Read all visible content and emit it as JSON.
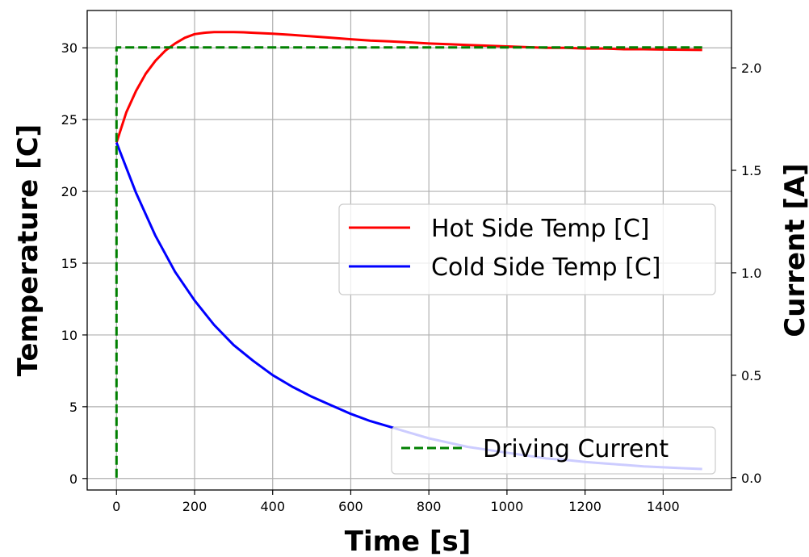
{
  "chart_data": {
    "type": "line",
    "xlabel": "Time [s]",
    "ylabel_left": "Temperature [C]",
    "ylabel_right": "Current [A]",
    "xlim": [
      -75,
      1575
    ],
    "ylim_left": [
      -0.8,
      32.6
    ],
    "ylim_right": [
      -0.06,
      2.28
    ],
    "x_ticks": [
      0,
      200,
      400,
      600,
      800,
      1000,
      1200,
      1400
    ],
    "y_left_ticks": [
      0,
      5,
      10,
      15,
      20,
      25,
      30
    ],
    "y_right_ticks": [
      0.0,
      0.5,
      1.0,
      1.5,
      2.0
    ],
    "x_tick_labels": [
      "0",
      "200",
      "400",
      "600",
      "800",
      "1000",
      "1200",
      "1400"
    ],
    "y_left_tick_labels": [
      "0",
      "5",
      "10",
      "15",
      "20",
      "25",
      "30"
    ],
    "y_right_tick_labels": [
      "0.0",
      "0.5",
      "1.0",
      "1.5",
      "2.0"
    ],
    "grid": true,
    "series": [
      {
        "name": "Hot Side Temp [C]",
        "axis": "left",
        "color": "#ff0000",
        "style": "solid",
        "x": [
          0,
          25,
          50,
          75,
          100,
          125,
          150,
          175,
          200,
          225,
          250,
          275,
          300,
          325,
          350,
          400,
          450,
          500,
          550,
          600,
          650,
          700,
          750,
          800,
          850,
          900,
          950,
          1000,
          1050,
          1100,
          1150,
          1200,
          1250,
          1300,
          1350,
          1400,
          1450,
          1500
        ],
        "y": [
          23.4,
          25.5,
          27.0,
          28.2,
          29.1,
          29.8,
          30.3,
          30.7,
          30.95,
          31.05,
          31.1,
          31.1,
          31.1,
          31.08,
          31.05,
          30.98,
          30.9,
          30.8,
          30.7,
          30.6,
          30.5,
          30.45,
          30.38,
          30.3,
          30.25,
          30.2,
          30.15,
          30.1,
          30.05,
          30.0,
          30.0,
          29.95,
          29.95,
          29.9,
          29.9,
          29.88,
          29.87,
          29.85
        ]
      },
      {
        "name": "Cold Side Temp [C]",
        "axis": "left",
        "color": "#0000ff",
        "style": "solid",
        "x": [
          0,
          50,
          100,
          150,
          200,
          250,
          300,
          350,
          400,
          450,
          500,
          550,
          600,
          650,
          700,
          750,
          800,
          850,
          900,
          950,
          1000,
          1050,
          1100,
          1150,
          1200,
          1250,
          1300,
          1350,
          1400,
          1450,
          1500
        ],
        "y": [
          23.4,
          19.9,
          16.9,
          14.4,
          12.4,
          10.7,
          9.3,
          8.2,
          7.2,
          6.4,
          5.7,
          5.1,
          4.5,
          4.0,
          3.6,
          3.2,
          2.8,
          2.5,
          2.2,
          2.0,
          1.8,
          1.6,
          1.4,
          1.3,
          1.15,
          1.05,
          0.95,
          0.85,
          0.78,
          0.72,
          0.66
        ]
      },
      {
        "name": "Driving Current",
        "axis": "right",
        "color": "#008000",
        "style": "dashed",
        "x": [
          0,
          0,
          1500
        ],
        "y": [
          0.0,
          2.1,
          2.1
        ]
      }
    ],
    "legends": [
      {
        "entries": [
          "Hot Side Temp [C]",
          "Cold Side Temp [C]"
        ],
        "placement": "center-right"
      },
      {
        "entries": [
          "Driving Current"
        ],
        "placement": "lower-right"
      }
    ]
  }
}
